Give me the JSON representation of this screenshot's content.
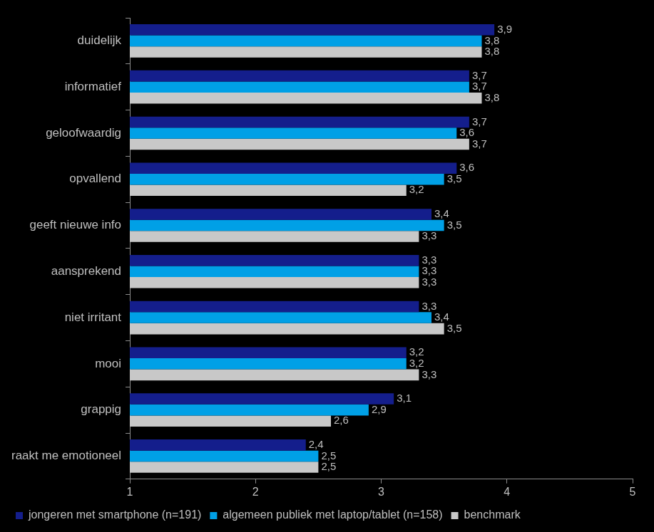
{
  "chart_data": {
    "type": "bar",
    "orientation": "horizontal",
    "categories": [
      "duidelijk",
      "informatief",
      "geloofwaardig",
      "opvallend",
      "geeft nieuwe info",
      "aansprekend",
      "niet irritant",
      "mooi",
      "grappig",
      "raakt me emotioneel"
    ],
    "series": [
      {
        "name": "jongeren met smartphone (n=191)",
        "color": "#141e8c",
        "values": [
          3.9,
          3.7,
          3.7,
          3.6,
          3.4,
          3.3,
          3.3,
          3.2,
          3.1,
          2.4
        ],
        "value_labels": [
          "3,9",
          "3,7",
          "3,7",
          "3,6",
          "3,4",
          "3,3",
          "3,3",
          "3,2",
          "3,1",
          "2,4"
        ]
      },
      {
        "name": "algemeen publiek met laptop/tablet (n=158)",
        "color": "#00a0e6",
        "values": [
          3.8,
          3.7,
          3.6,
          3.5,
          3.5,
          3.3,
          3.4,
          3.2,
          2.9,
          2.5
        ],
        "value_labels": [
          "3,8",
          "3,7",
          "3,6",
          "3,5",
          "3,5",
          "3,3",
          "3,4",
          "3,2",
          "2,9",
          "2,5"
        ]
      },
      {
        "name": "benchmark",
        "color": "#c8c8c8",
        "values": [
          3.8,
          3.8,
          3.7,
          3.2,
          3.3,
          3.3,
          3.5,
          3.3,
          2.6,
          2.5
        ],
        "value_labels": [
          "3,8",
          "3,8",
          "3,7",
          "3,2",
          "3,3",
          "3,3",
          "3,5",
          "3,3",
          "2,6",
          "2,5"
        ]
      }
    ],
    "xlim": [
      1,
      5
    ],
    "xticks": [
      1,
      2,
      3,
      4,
      5
    ],
    "grid": false,
    "legend": "bottom",
    "data_labels": true
  }
}
